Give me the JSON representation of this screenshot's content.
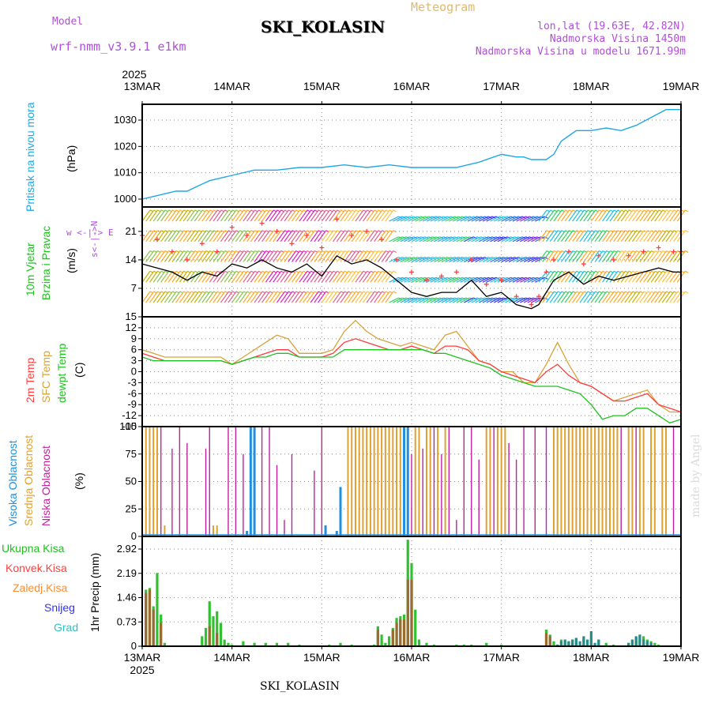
{
  "header": {
    "model_label": "Model",
    "model_name": "wrf-nmm_v3.9.1 e1km",
    "station": "SKI_KOLASIN",
    "meteogram": "Meteogram",
    "lonlat": "lon,lat (19.63E, 42.82N)",
    "elev": "Nadmorska Visina 1450m",
    "elev_model": "Nadmorska Visina u modelu 1671.99m",
    "footer_station": "SKI_KOLASIN",
    "watermark": "made by Angel"
  },
  "colors": {
    "pressure": "#1fa8e6",
    "wind_line": "#000000",
    "gust": "#ff4040",
    "t2m": "#ff3b3b",
    "sfc": "#d8a23a",
    "dewpt": "#20c020",
    "cloud_high": "#1f8fe0",
    "cloud_mid": "#e0a030",
    "cloud_low": "#c020a0",
    "precip_total": "#30c030",
    "precip_conv": "#ff4040",
    "precip_frz": "#ff8c30",
    "precip_snow": "#3030ff",
    "precip_grad": "#30c0c0",
    "label_purple": "#b04fd8"
  },
  "chart_data": [
    {
      "type": "line",
      "panel": "pressure",
      "ylabel": "Pritisak na nivou mora",
      "unit": "(hPa)",
      "yticks": [
        1000,
        1010,
        1020,
        1030
      ],
      "ylim": [
        997,
        1036
      ],
      "xlim": [
        0,
        144
      ],
      "x_start_label": "2025",
      "x_end_label": "2025",
      "xticks": [
        "13MAR",
        "14MAR",
        "15MAR",
        "16MAR",
        "17MAR",
        "18MAR",
        "19MAR"
      ],
      "grid": true,
      "series": [
        {
          "x": [
            0,
            3,
            6,
            9,
            12,
            15,
            18,
            21,
            24,
            30,
            36,
            42,
            48,
            54,
            60,
            66,
            72,
            78,
            84,
            90,
            96,
            100,
            102,
            104,
            106,
            108,
            110,
            112,
            114,
            116,
            118,
            120,
            124,
            128,
            132,
            136,
            140,
            144
          ],
          "values": [
            1000,
            1001,
            1002,
            1003,
            1003,
            1005,
            1007,
            1008,
            1009,
            1011,
            1011,
            1012,
            1012,
            1013,
            1012,
            1013,
            1012,
            1012,
            1012,
            1014,
            1017,
            1016,
            1016,
            1015,
            1015,
            1015,
            1017,
            1022,
            1024,
            1026,
            1026,
            1026,
            1027,
            1026,
            1028,
            1031,
            1034,
            1034
          ]
        }
      ]
    },
    {
      "type": "line",
      "panel": "wind",
      "ylabel": "10m Vjetar",
      "ylabel2": "Brzina i Pravac",
      "unit": "(m/s)",
      "compass": "w <-|-> E",
      "compass_vert": "s<-|->N",
      "yticks": [
        7,
        14,
        21
      ],
      "ylim": [
        0,
        27
      ],
      "xlim": [
        0,
        144
      ],
      "grid": true,
      "barb_bands": [
        3.5,
        8.5,
        13.5,
        18.5,
        23.5
      ],
      "barb_color_segments": [
        {
          "from": 0,
          "to": 18,
          "colors": [
            "#ffa726",
            "#c9b000",
            "#8bc34a"
          ]
        },
        {
          "from": 18,
          "to": 30,
          "colors": [
            "#ffa726",
            "#e06090",
            "#8bc34a"
          ]
        },
        {
          "from": 30,
          "to": 48,
          "colors": [
            "#e020c0",
            "#e06090",
            "#ffa726"
          ]
        },
        {
          "from": 48,
          "to": 66,
          "colors": [
            "#ffa726",
            "#ffc040",
            "#e06090"
          ]
        },
        {
          "from": 66,
          "to": 86,
          "colors": [
            "#20c0e0",
            "#30d060",
            "#1fa8e6"
          ]
        },
        {
          "from": 86,
          "to": 100,
          "colors": [
            "#1f6fe0",
            "#3030ff",
            "#20c0e0"
          ]
        },
        {
          "from": 100,
          "to": 106,
          "colors": [
            "#3030ff",
            "#8020e0",
            "#1f6fe0"
          ]
        },
        {
          "from": 106,
          "to": 126,
          "colors": [
            "#20c0e0",
            "#30d060",
            "#ffa726"
          ]
        },
        {
          "from": 126,
          "to": 144,
          "colors": [
            "#ffa726",
            "#c9b000",
            "#ffc040"
          ]
        }
      ],
      "series": [
        {
          "name": "speed",
          "x": [
            0,
            4,
            8,
            12,
            16,
            20,
            24,
            28,
            32,
            36,
            40,
            44,
            48,
            52,
            56,
            60,
            64,
            68,
            72,
            76,
            80,
            84,
            88,
            92,
            96,
            100,
            104,
            106,
            108,
            110,
            114,
            118,
            122,
            126,
            130,
            134,
            138,
            142,
            144
          ],
          "values": [
            13,
            12,
            11,
            9,
            11,
            10,
            13,
            12,
            14,
            12,
            11,
            13,
            10,
            15,
            13,
            14,
            12,
            9,
            6,
            5,
            6,
            6,
            9,
            5,
            6,
            3,
            2,
            3,
            6,
            9,
            11,
            8,
            10,
            9,
            10,
            11,
            12,
            11,
            11
          ]
        },
        {
          "name": "gust",
          "x": [
            0,
            4,
            8,
            12,
            16,
            20,
            24,
            28,
            32,
            36,
            40,
            44,
            48,
            52,
            56,
            60,
            64,
            68,
            72,
            76,
            80,
            84,
            88,
            92,
            96,
            100,
            104,
            106,
            108,
            110,
            114,
            118,
            122,
            126,
            130,
            134,
            138,
            142,
            144
          ],
          "values": [
            20,
            19,
            16,
            14,
            18,
            16,
            22,
            20,
            23,
            21,
            18,
            20,
            17,
            24,
            20,
            21,
            19,
            14,
            11,
            9,
            10,
            11,
            14,
            8,
            9,
            5,
            3,
            5,
            11,
            14,
            16,
            13,
            15,
            14,
            15,
            16,
            17,
            16,
            16
          ]
        }
      ]
    },
    {
      "type": "line",
      "panel": "temperature",
      "ylabels": [
        "2m Temp",
        "SFC Temp",
        "dewpt Temp"
      ],
      "unit": "(C)",
      "yticks": [
        -15,
        -12,
        -9,
        -6,
        -3,
        0,
        3,
        6,
        9,
        12,
        15
      ],
      "ylim": [
        -15,
        15
      ],
      "xlim": [
        0,
        144
      ],
      "grid": true,
      "x": [
        0,
        3,
        6,
        9,
        12,
        15,
        18,
        21,
        24,
        27,
        30,
        33,
        36,
        39,
        42,
        45,
        48,
        51,
        54,
        57,
        60,
        63,
        66,
        69,
        72,
        75,
        78,
        81,
        84,
        87,
        90,
        93,
        96,
        99,
        102,
        105,
        108,
        111,
        114,
        117,
        120,
        123,
        126,
        129,
        132,
        135,
        138,
        141,
        144
      ],
      "series": [
        {
          "name": "2m Temp",
          "values": [
            5,
            4,
            3,
            3,
            3,
            3,
            3,
            3,
            2,
            3,
            4,
            5,
            6,
            6,
            4,
            4,
            4,
            5,
            8,
            9,
            8,
            7,
            6,
            6,
            7,
            6,
            5,
            7,
            7,
            6,
            3,
            2,
            0,
            -1,
            -2,
            -3,
            0,
            2,
            -1,
            -3,
            -4,
            -6,
            -8,
            -8,
            -7,
            -6,
            -9,
            -10,
            -11
          ]
        },
        {
          "name": "SFC Temp",
          "values": [
            6,
            5,
            4,
            4,
            4,
            4,
            4,
            4,
            2,
            4,
            6,
            8,
            10,
            9,
            5,
            5,
            5,
            6,
            11,
            14,
            11,
            9,
            8,
            7,
            8,
            7,
            6,
            10,
            11,
            7,
            3,
            2,
            0,
            0,
            -3,
            -3,
            2,
            8,
            2,
            -3,
            -4,
            -6,
            -8,
            -7,
            -6,
            -5,
            -9,
            -11,
            -11
          ]
        },
        {
          "name": "dewpt Temp",
          "values": [
            4,
            3,
            3,
            3,
            3,
            3,
            3,
            3,
            2,
            3,
            4,
            4,
            5,
            5,
            4,
            4,
            4,
            4,
            6,
            6,
            6,
            6,
            6,
            6,
            6,
            6,
            5,
            5,
            4,
            3,
            2,
            1,
            -1,
            -2,
            -3,
            -4,
            -4,
            -4,
            -5,
            -6,
            -9,
            -13,
            -12,
            -12,
            -10,
            -10,
            -12,
            -14,
            -13
          ]
        }
      ]
    },
    {
      "type": "bar",
      "panel": "clouds",
      "ylabels": [
        "Visoka Oblacnost",
        "Srednja Oblacnost",
        "Niska Oblacnost"
      ],
      "unit": "(%)",
      "yticks": [
        0,
        25,
        50,
        75,
        100
      ],
      "ylim": [
        0,
        100
      ],
      "xlim": [
        0,
        144
      ],
      "grid": true,
      "series": [
        {
          "name": "Visoka Oblacnost",
          "x": [
            28,
            29,
            30,
            49,
            52,
            53,
            70,
            71
          ],
          "values": [
            5,
            100,
            100,
            10,
            5,
            45,
            100,
            100
          ]
        },
        {
          "name": "Srednja Oblacnost",
          "x": [
            1,
            2,
            3,
            4,
            6,
            19,
            20,
            55,
            56,
            57,
            58,
            59,
            60,
            61,
            62,
            63,
            64,
            65,
            66,
            67,
            68,
            69,
            73,
            74,
            76,
            77,
            79,
            81,
            92,
            93,
            95,
            96,
            97,
            110,
            111,
            112,
            113,
            114,
            115,
            116,
            117,
            118,
            119,
            120,
            121,
            122,
            123,
            124,
            125,
            126,
            127,
            130,
            131,
            133,
            134,
            136,
            137,
            139,
            140
          ],
          "values": [
            100,
            100,
            100,
            100,
            10,
            10,
            10,
            100,
            100,
            100,
            100,
            100,
            100,
            100,
            100,
            100,
            100,
            100,
            100,
            100,
            100,
            100,
            100,
            100,
            100,
            100,
            100,
            100,
            100,
            100,
            100,
            100,
            100,
            100,
            100,
            100,
            100,
            100,
            100,
            100,
            100,
            100,
            100,
            100,
            100,
            100,
            100,
            100,
            100,
            100,
            100,
            100,
            100,
            100,
            100,
            100,
            100,
            100,
            100
          ]
        },
        {
          "name": "Niska Oblacnost",
          "x": [
            5,
            8,
            10,
            12,
            17,
            18,
            23,
            25,
            27,
            30,
            32,
            34,
            36,
            38,
            40,
            46,
            48,
            56,
            63,
            66,
            72,
            75,
            78,
            80,
            82,
            84,
            86,
            88,
            90,
            94,
            98,
            100,
            102,
            105,
            108,
            112,
            116,
            120,
            124,
            128,
            132,
            136,
            140,
            142
          ],
          "values": [
            100,
            80,
            100,
            85,
            80,
            100,
            100,
            100,
            75,
            100,
            100,
            100,
            65,
            15,
            75,
            60,
            100,
            100,
            100,
            100,
            75,
            80,
            100,
            75,
            100,
            15,
            100,
            100,
            70,
            100,
            85,
            70,
            100,
            100,
            100,
            100,
            100,
            100,
            100,
            100,
            100,
            100,
            100,
            100
          ]
        }
      ]
    },
    {
      "type": "bar",
      "panel": "precip",
      "legend": [
        "Ukupna Kisa",
        "Konvek.Kisa",
        "Zaledj.Kisa",
        "Snijeg",
        "Grad"
      ],
      "ylabel": "1hr Precip (mm)",
      "yticks": [
        0,
        0.73,
        1.46,
        2.19,
        2.92
      ],
      "ylim": [
        0,
        3.3
      ],
      "xlim": [
        0,
        144
      ],
      "x_bottom_labels": [
        "13MAR",
        "14MAR",
        "15MAR",
        "16MAR",
        "17MAR",
        "18MAR",
        "19MAR"
      ],
      "x_bottom_year": "2025",
      "grid": true,
      "series": [
        {
          "name": "Ukupna Kisa",
          "x": [
            1,
            2,
            3,
            4,
            5,
            6,
            16,
            17,
            18,
            19,
            20,
            21,
            22,
            23,
            24,
            27,
            30,
            33,
            36,
            39,
            42,
            50,
            53,
            56,
            62,
            63,
            64,
            65,
            66,
            67,
            68,
            69,
            70,
            71,
            72,
            73,
            74,
            76,
            78,
            84,
            86,
            88,
            92,
            96,
            108,
            109,
            110,
            111,
            112,
            113,
            114,
            115,
            116,
            118,
            120,
            122,
            124,
            126,
            130,
            131,
            132,
            133,
            134,
            135,
            136,
            137,
            138
          ],
          "values": [
            1.7,
            1.75,
            1.2,
            2.2,
            0.95,
            0.1,
            0.3,
            0.55,
            1.35,
            0.9,
            1.05,
            0.7,
            0.2,
            0.1,
            0.05,
            0.15,
            0.1,
            0.1,
            0.1,
            0.1,
            0.05,
            0.05,
            0.1,
            0.05,
            0.05,
            0.6,
            0.35,
            0.1,
            0.3,
            0.55,
            0.85,
            0.9,
            0.95,
            3.2,
            2.5,
            1.1,
            0.2,
            0.1,
            0.05,
            0.05,
            0.05,
            0.05,
            0.1,
            0.05,
            0.5,
            0.35,
            0.15,
            0.05,
            0.2,
            0.2,
            0.15,
            0.2,
            0.25,
            0.2,
            0.2,
            0.2,
            0.1,
            0.05,
            0.1,
            0.2,
            0.25,
            0.3,
            0.3,
            0.2,
            0.15,
            0.1,
            0.05
          ]
        },
        {
          "name": "Konvek.Kisa",
          "x": [
            1,
            2,
            3,
            5,
            18,
            20,
            63,
            67,
            68,
            69,
            70,
            71,
            72,
            108,
            109
          ],
          "values": [
            1.6,
            1.7,
            1.1,
            0.7,
            0.6,
            0.4,
            0.5,
            0.5,
            0.7,
            0.8,
            0.8,
            2.0,
            2.0,
            0.4,
            0.3
          ]
        },
        {
          "name": "Snijeg",
          "x": [
            111,
            112,
            113,
            114,
            115,
            116,
            117,
            118,
            119,
            120,
            121,
            122,
            130,
            131,
            132,
            133,
            134,
            135,
            136
          ],
          "values": [
            0.05,
            0.15,
            0.2,
            0.15,
            0.2,
            0.25,
            0.15,
            0.3,
            0.2,
            0.45,
            0.1,
            0.2,
            0.1,
            0.2,
            0.3,
            0.35,
            0.2,
            0.15,
            0.1
          ]
        }
      ]
    }
  ]
}
